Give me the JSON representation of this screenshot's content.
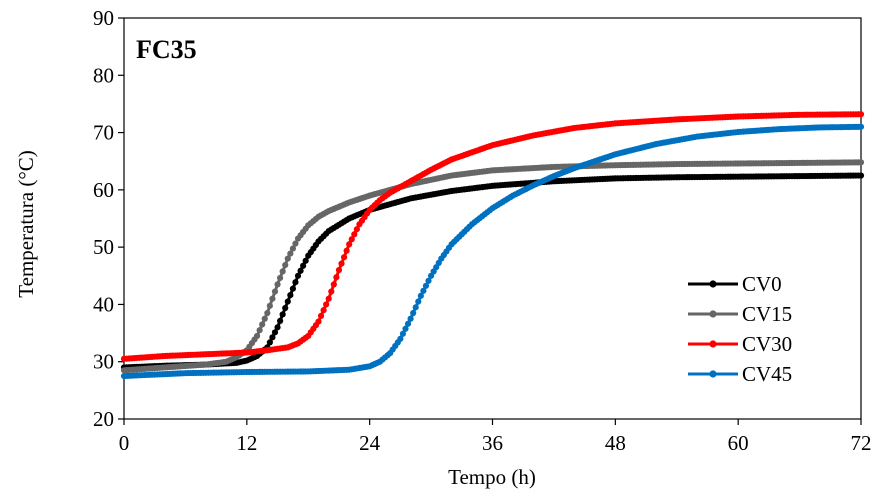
{
  "chart_data": {
    "type": "line",
    "title": "FC35",
    "xlabel": "Tempo (h)",
    "ylabel": "Temperatura (°C)",
    "xlim": [
      0,
      72
    ],
    "ylim": [
      20,
      90
    ],
    "xticks": [
      0,
      12,
      24,
      36,
      48,
      60,
      72
    ],
    "yticks": [
      20,
      30,
      40,
      50,
      60,
      70,
      80,
      90
    ],
    "grid": false,
    "legend_position": "bottom-right",
    "series": [
      {
        "name": "CV0",
        "color": "#000000",
        "x": [
          0,
          4,
          8,
          11,
          12,
          13,
          14,
          15,
          16,
          17,
          18,
          19,
          20,
          22,
          24,
          28,
          32,
          36,
          42,
          48,
          54,
          60,
          66,
          72
        ],
        "y": [
          29.0,
          29.3,
          29.5,
          29.8,
          30.2,
          31.0,
          32.5,
          36.0,
          40.5,
          45.0,
          48.5,
          51.0,
          52.8,
          55.0,
          56.5,
          58.5,
          59.8,
          60.7,
          61.5,
          62.0,
          62.2,
          62.3,
          62.4,
          62.5
        ]
      },
      {
        "name": "CV15",
        "color": "#666666",
        "x": [
          0,
          4,
          8,
          10,
          11,
          12,
          13,
          14,
          15,
          16,
          17,
          18,
          19,
          20,
          22,
          24,
          28,
          32,
          36,
          42,
          48,
          54,
          60,
          66,
          72
        ],
        "y": [
          28.5,
          29.0,
          29.5,
          30.0,
          30.8,
          32.0,
          34.5,
          38.5,
          43.5,
          48.0,
          51.5,
          53.8,
          55.3,
          56.3,
          57.8,
          59.0,
          61.0,
          62.5,
          63.4,
          64.0,
          64.3,
          64.5,
          64.6,
          64.7,
          64.8
        ]
      },
      {
        "name": "CV30",
        "color": "#ff0000",
        "x": [
          0,
          4,
          8,
          12,
          14,
          16,
          17,
          18,
          19,
          20,
          21,
          22,
          23,
          24,
          25,
          26,
          27,
          28,
          30,
          32,
          36,
          40,
          44,
          48,
          54,
          60,
          66,
          72
        ],
        "y": [
          30.5,
          31.0,
          31.3,
          31.6,
          32.0,
          32.5,
          33.2,
          34.5,
          37.0,
          41.0,
          46.0,
          50.5,
          54.0,
          56.5,
          58.2,
          59.5,
          60.5,
          61.5,
          63.5,
          65.3,
          67.8,
          69.5,
          70.8,
          71.6,
          72.3,
          72.8,
          73.1,
          73.2
        ]
      },
      {
        "name": "CV45",
        "color": "#0070c0",
        "x": [
          0,
          6,
          12,
          18,
          22,
          24,
          25,
          26,
          27,
          28,
          29,
          30,
          31,
          32,
          34,
          36,
          38,
          40,
          42,
          44,
          48,
          52,
          56,
          60,
          64,
          68,
          72
        ],
        "y": [
          27.5,
          28.0,
          28.2,
          28.3,
          28.6,
          29.2,
          30.0,
          31.5,
          34.0,
          37.5,
          41.5,
          45.0,
          48.0,
          50.5,
          54.0,
          56.8,
          59.0,
          60.8,
          62.4,
          63.8,
          66.2,
          68.0,
          69.3,
          70.1,
          70.6,
          70.9,
          71.0
        ]
      }
    ]
  }
}
